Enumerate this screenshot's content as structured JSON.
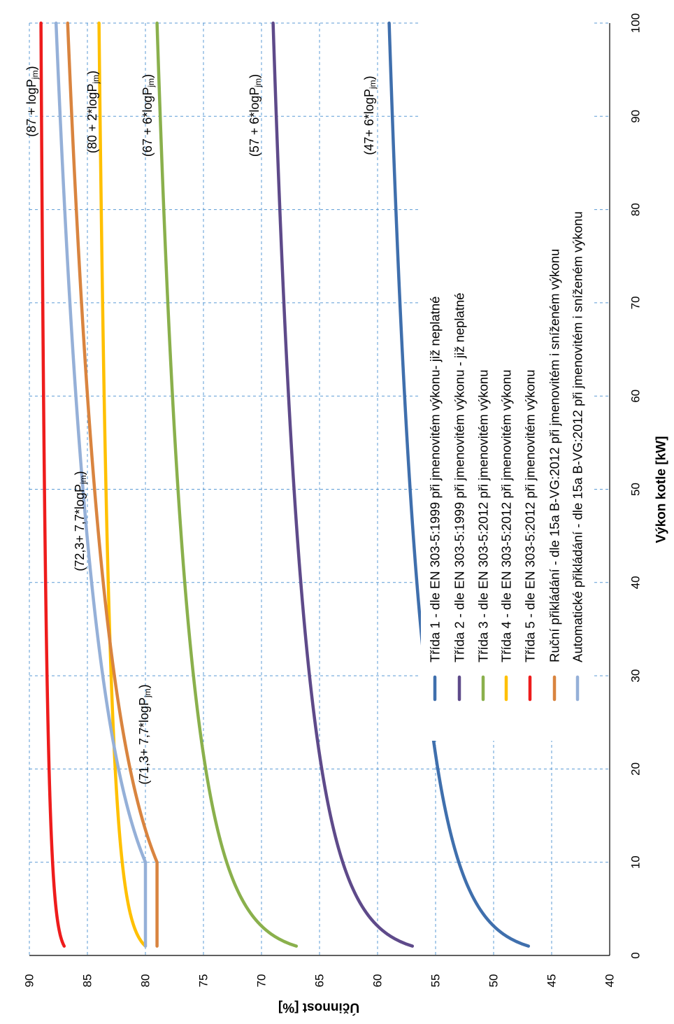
{
  "chart_data": {
    "type": "line",
    "xlabel": "Výkon kotle [kW]",
    "ylabel": "Účinnost [%]",
    "xlim": [
      0,
      100
    ],
    "ylim": [
      40,
      90
    ],
    "x_ticks": [
      0,
      10,
      20,
      30,
      40,
      50,
      60,
      70,
      80,
      90,
      100
    ],
    "y_ticks": [
      40,
      45,
      50,
      55,
      60,
      65,
      70,
      75,
      80,
      85,
      90
    ],
    "grid": true,
    "orientation": "rotated 90° clockwise (x axis along right edge, y axis along bottom edge)",
    "legend_position": "bottom-right",
    "series": [
      {
        "name": "Třída 1 - dle EN 303-5:1999 při jmenovitém výkonu- již neplatné",
        "color": "#3f6fad",
        "formula": "47 + 6*log10(x)",
        "x_range": [
          1,
          100
        ]
      },
      {
        "name": "Třída 2 - dle EN 303-5:1999 při jmenovitém výkonu - již neplatné",
        "color": "#5e4a8a",
        "formula": "57 + 6*log10(x)",
        "x_range": [
          1,
          100
        ]
      },
      {
        "name": "Třída 3 - dle EN 303-5:2012 při jmenovitém výkonu",
        "color": "#8ab04c",
        "formula": "67 + 6*log10(x)",
        "x_range": [
          1,
          100
        ]
      },
      {
        "name": "Třída 4 - dle EN 303-5:2012 při jmenovitém výkonu",
        "color": "#ffc000",
        "formula": "80 + 2*log10(x)",
        "x_range": [
          1,
          100
        ]
      },
      {
        "name": "Třída 5 - dle EN 303-5:2012 při jmenovitém výkonu",
        "color": "#ee1c1c",
        "formula": "87 + log10(x)",
        "x_range": [
          1,
          100
        ]
      },
      {
        "name": "Ruční přikládání - dle 15a B-VG:2012 při jmenovitém i sníženém výkonu",
        "color": "#d9843f",
        "formula": "79 for x<=10; 71.3 + 7.7*log10(x) for x>10",
        "x_range": [
          1,
          100
        ]
      },
      {
        "name": "Automatické přikládání - dle 15a B-VG:2012 při jmenovitém i sníženém výkonu",
        "color": "#95b0d8",
        "formula": "80 for x<=10; 72.3 + 7.7*log10(x) for x>10",
        "x_range": [
          1,
          100
        ]
      }
    ],
    "annotations": [
      {
        "pre": "(87 + logP",
        "sub": "jm",
        "post": ")"
      },
      {
        "pre": "(80 + 2*logP",
        "sub": "jm",
        "post": ")"
      },
      {
        "pre": "(67 + 6*logP",
        "sub": "jm",
        "post": ")"
      },
      {
        "pre": "(57 + 6*logP",
        "sub": "jm",
        "post": ")"
      },
      {
        "pre": "(47+ 6*logP",
        "sub": "jm",
        "post": ")"
      },
      {
        "pre": "(72,3+ 7,7*logP",
        "sub": "jm",
        "post": ")"
      },
      {
        "pre": "(71,3+ 7,7*logP",
        "sub": "jm",
        "post": ")"
      }
    ]
  }
}
